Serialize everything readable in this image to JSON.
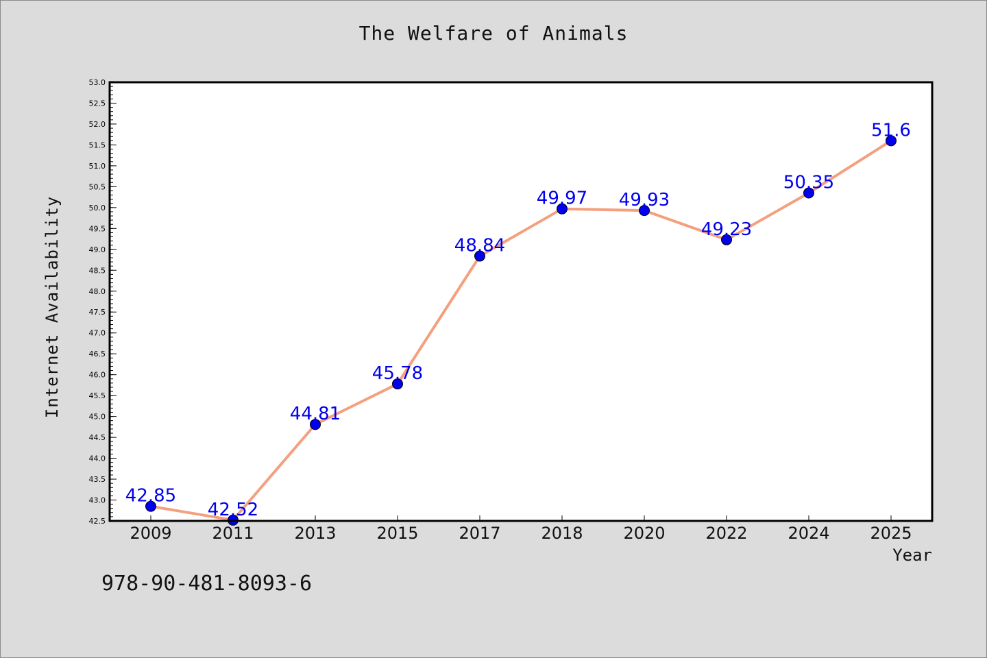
{
  "page": {
    "background": "#dcdcdc"
  },
  "chart_data": {
    "type": "line",
    "title": "The Welfare of Animals",
    "xlabel": "Year",
    "ylabel": "Internet Availability",
    "categories": [
      "2009",
      "2011",
      "2013",
      "2015",
      "2017",
      "2018",
      "2020",
      "2022",
      "2024",
      "2025"
    ],
    "series": [
      {
        "values": [
          42.85,
          42.52,
          44.81,
          45.78,
          48.84,
          49.97,
          49.93,
          49.23,
          50.35,
          51.6
        ],
        "data_labels": [
          "42.85",
          "42.52",
          "44.81",
          "45.78",
          "48.84",
          "49.97",
          "49.93",
          "49.23",
          "50.35",
          "51.6"
        ],
        "line_color": "#f4a07e",
        "marker_color": "#0000ee",
        "label_color": "#0000ee"
      }
    ],
    "ylim": [
      42.5,
      53.0
    ],
    "yticks": [
      "42.5",
      "43.0",
      "43.5",
      "44.0",
      "44.5",
      "45.0",
      "45.5",
      "46.0",
      "46.5",
      "47.0",
      "47.5",
      "48.0",
      "48.5",
      "49.0",
      "49.5",
      "50.0",
      "50.5",
      "51.0",
      "51.5",
      "52.0",
      "52.5",
      "53.0"
    ],
    "ytick_values": [
      42.5,
      43.0,
      43.5,
      44.0,
      44.5,
      45.0,
      45.5,
      46.0,
      46.5,
      47.0,
      47.5,
      48.0,
      48.5,
      49.0,
      49.5,
      50.0,
      50.5,
      51.0,
      51.5,
      52.0,
      52.5,
      53.0
    ],
    "grid": false,
    "legend": "none"
  },
  "footer": {
    "isbn": "978-90-481-8093-6"
  }
}
